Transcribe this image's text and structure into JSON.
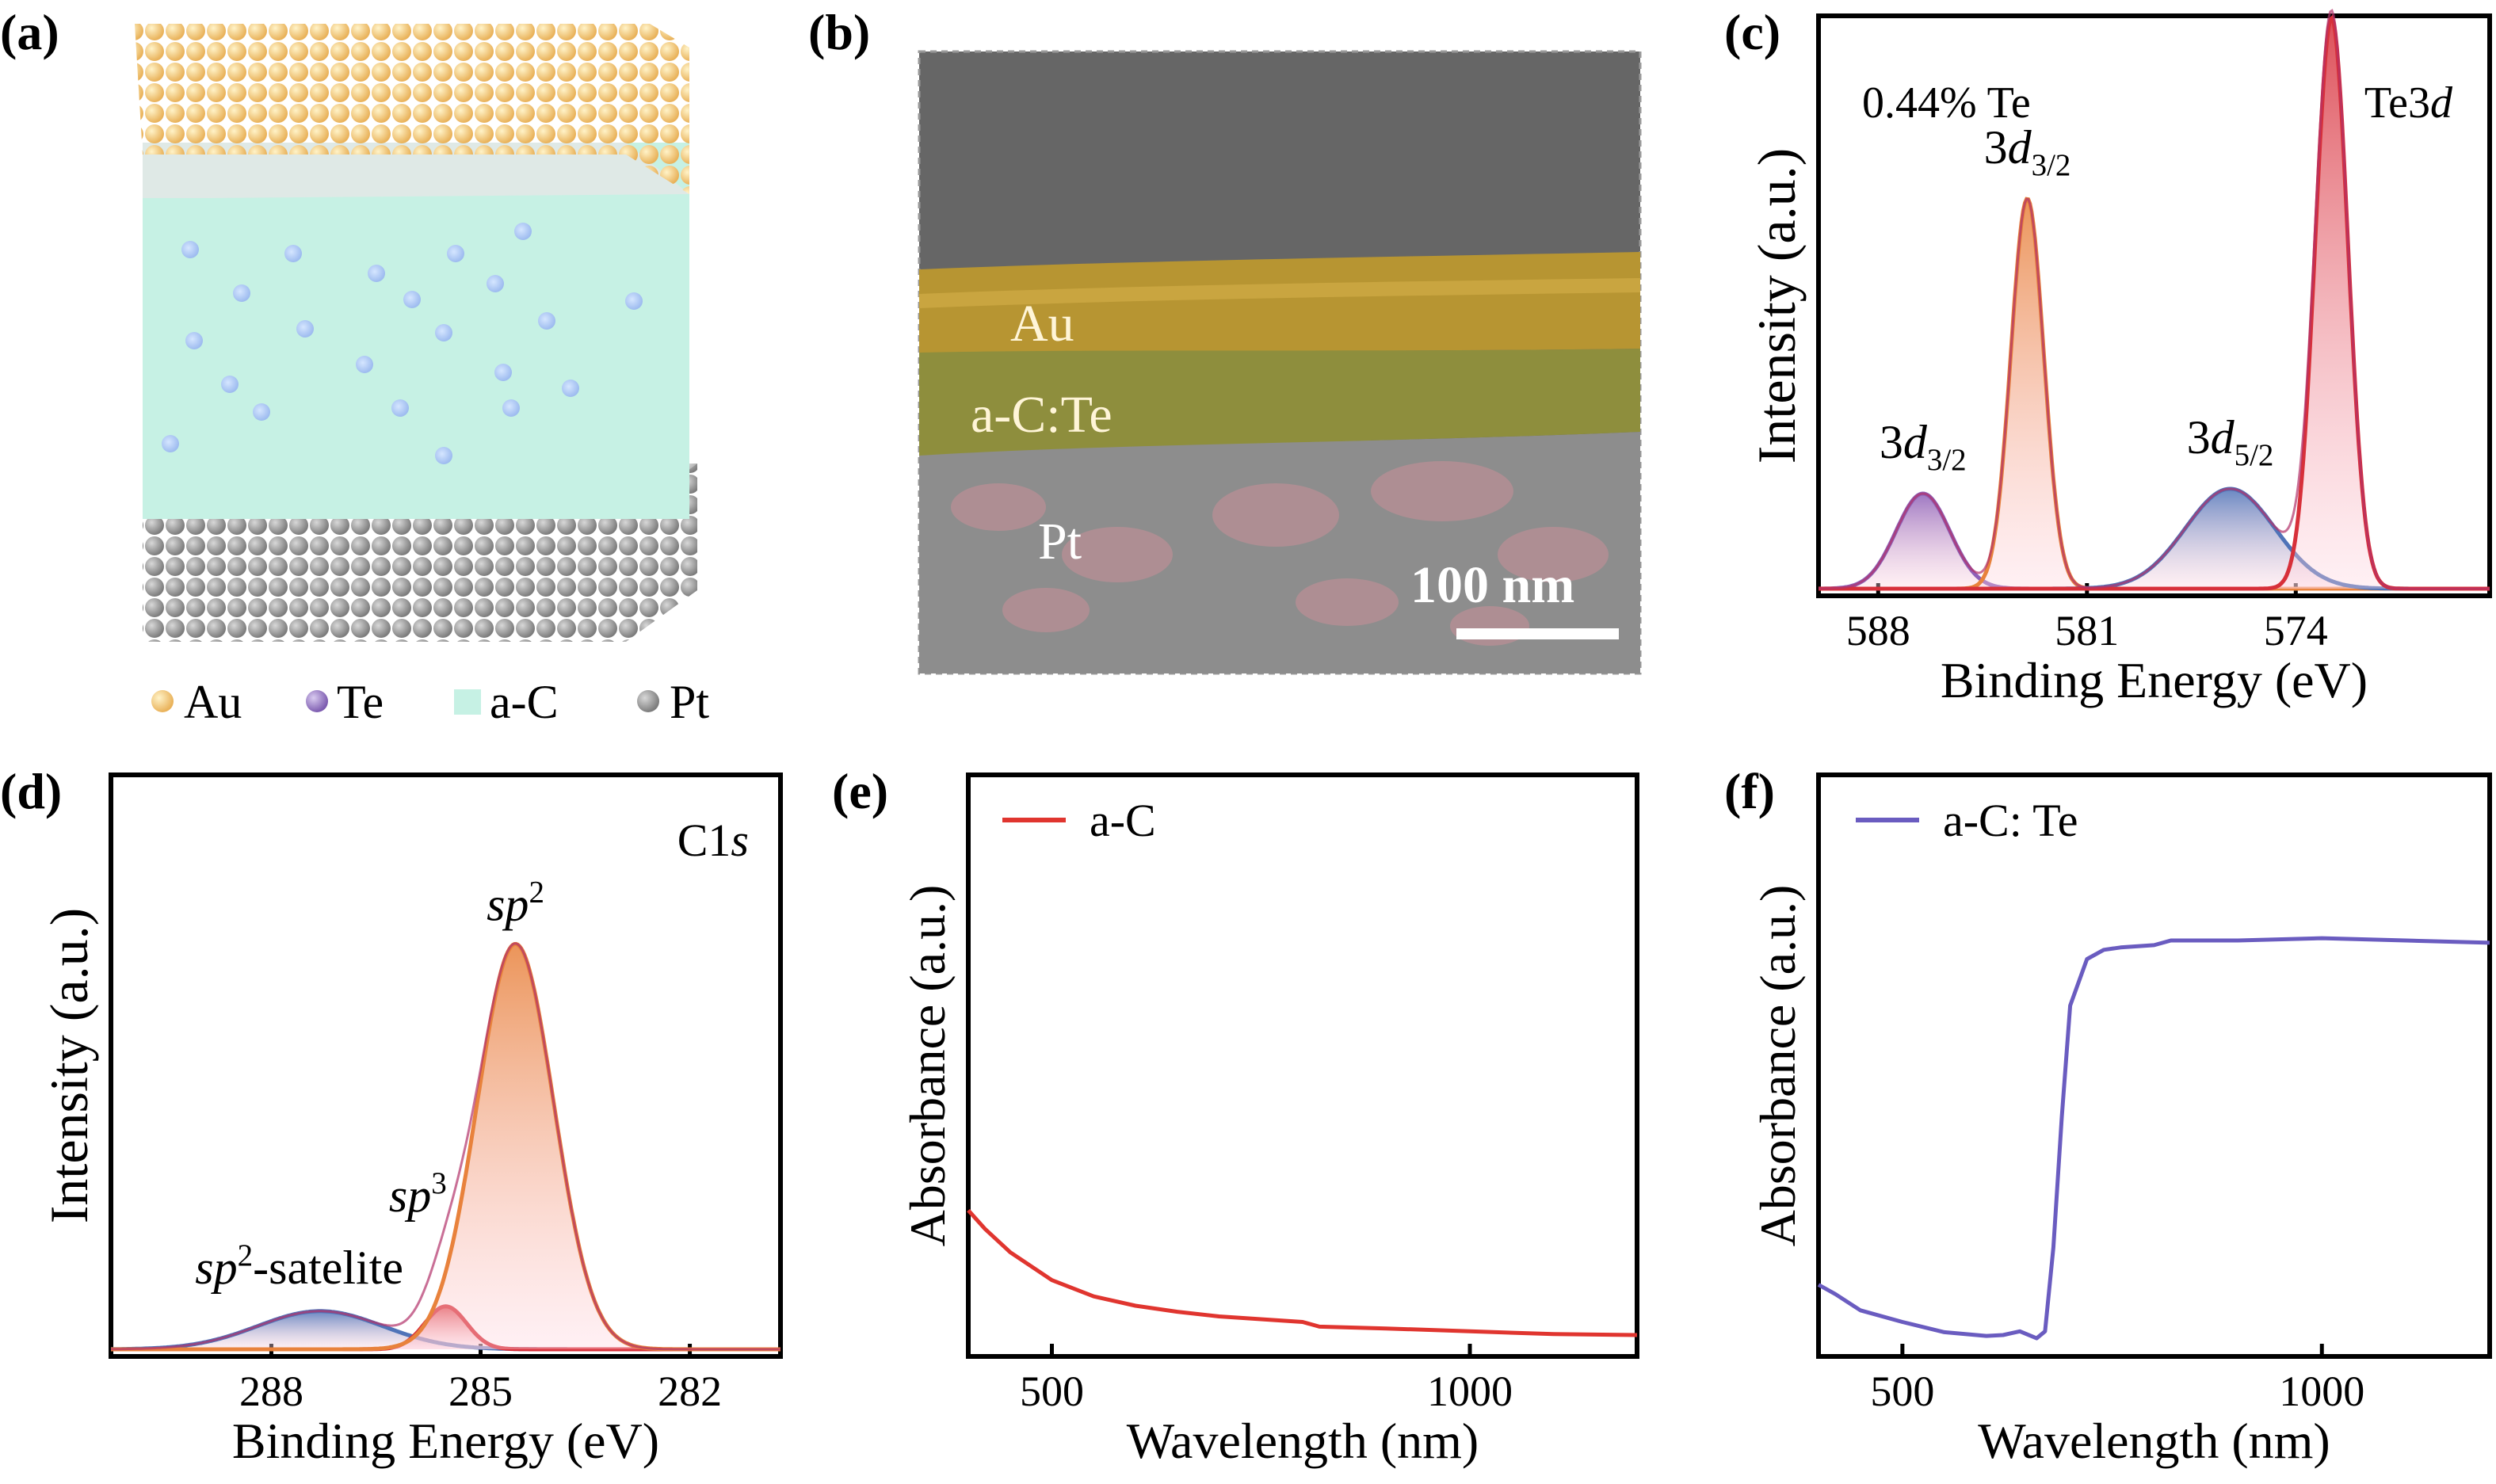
{
  "panel_labels": [
    "(a)",
    "(b)",
    "(c)",
    "(d)",
    "(e)",
    "(f)"
  ],
  "colors": {
    "au": "#f3c97a",
    "te": "#a98fd0",
    "ac": "#c4f0e2",
    "pt": "#9a9a9a",
    "orange": "#e8823c",
    "red": "#d7303a",
    "purple": "#8d60b8",
    "blue": "#4f73b8",
    "line_e": "#e0352f",
    "line_f": "#6a5cc0"
  },
  "schematic": {
    "legend": [
      {
        "label": "Au",
        "icon": "au-atom-icon"
      },
      {
        "label": "Te",
        "icon": "te-atom-icon"
      },
      {
        "label": "a-C",
        "icon": "ac-square-icon"
      },
      {
        "label": "Pt",
        "icon": "pt-atom-icon"
      }
    ]
  },
  "micrograph": {
    "layers": [
      "Au",
      "a-C:Te",
      "Pt"
    ],
    "scale_bar": "100 nm"
  },
  "chart_data": [
    {
      "id": "c",
      "type": "line",
      "xlabel": "Binding Energy (eV)",
      "ylabel": "Intensity (a.u.)",
      "xlim": [
        590,
        567.5
      ],
      "x_reversed": true,
      "xticks": [
        588,
        581,
        574
      ],
      "ylim": [
        0,
        1
      ],
      "annotations": {
        "composition": "0.44% Te",
        "core_level": "Te3d"
      },
      "peaks": [
        {
          "label": "3d3/2",
          "center": 586.5,
          "height": 0.2,
          "sigma": 0.9,
          "color": "#8d60b8"
        },
        {
          "label": "3d3/2",
          "center": 583.0,
          "height": 0.82,
          "sigma": 0.55,
          "color": "#e8823c"
        },
        {
          "label": "3d5/2",
          "center": 576.2,
          "height": 0.21,
          "sigma": 1.5,
          "color": "#4f73b8"
        },
        {
          "label": "3d5/2",
          "center": 572.8,
          "height": 1.2,
          "sigma": 0.55,
          "color": "#d7303a"
        }
      ]
    },
    {
      "id": "d",
      "type": "line",
      "xlabel": "Binding Energy (eV)",
      "ylabel": "Intensity (a.u.)",
      "xlim": [
        290.3,
        280.7
      ],
      "x_reversed": true,
      "xticks": [
        288,
        285,
        282
      ],
      "ylim": [
        0,
        1
      ],
      "annotations": {
        "core_level": "C1s"
      },
      "peaks": [
        {
          "label": "sp2-satelite",
          "center": 287.3,
          "height": 0.08,
          "sigma": 0.9,
          "color": "#4f73b8"
        },
        {
          "label": "sp3",
          "center": 285.5,
          "height": 0.09,
          "sigma": 0.3,
          "color": "#d7303a"
        },
        {
          "label": "sp2",
          "center": 284.5,
          "height": 0.85,
          "sigma": 0.55,
          "color": "#e8823c"
        }
      ]
    },
    {
      "id": "e",
      "type": "line",
      "xlabel": "Wavelength (nm)",
      "ylabel": "Absorbance (a.u.)",
      "xlim": [
        400,
        1200
      ],
      "xticks": [
        500,
        1000
      ],
      "ylim": [
        0,
        1
      ],
      "series": [
        {
          "name": "a-C",
          "color": "#e0352f",
          "x": [
            400,
            420,
            450,
            500,
            550,
            600,
            650,
            700,
            800,
            820,
            900,
            1000,
            1100,
            1200
          ],
          "y": [
            0.28,
            0.24,
            0.19,
            0.13,
            0.095,
            0.075,
            0.062,
            0.052,
            0.04,
            0.03,
            0.026,
            0.02,
            0.014,
            0.012
          ]
        }
      ]
    },
    {
      "id": "f",
      "type": "line",
      "xlabel": "Wavelength (nm)",
      "ylabel": "Absorbance (a.u.)",
      "xlim": [
        400,
        1200
      ],
      "xticks": [
        500,
        1000
      ],
      "ylim": [
        0,
        1
      ],
      "series": [
        {
          "name": "a-C: Te",
          "color": "#6a5cc0",
          "x": [
            400,
            420,
            450,
            500,
            550,
            600,
            620,
            640,
            660,
            670,
            680,
            690,
            700,
            720,
            740,
            760,
            800,
            820,
            900,
            1000,
            1100,
            1200
          ],
          "y": [
            0.12,
            0.1,
            0.065,
            0.04,
            0.018,
            0.01,
            0.012,
            0.02,
            0.005,
            0.02,
            0.2,
            0.48,
            0.72,
            0.82,
            0.84,
            0.845,
            0.85,
            0.86,
            0.86,
            0.865,
            0.86,
            0.855
          ]
        }
      ]
    }
  ]
}
